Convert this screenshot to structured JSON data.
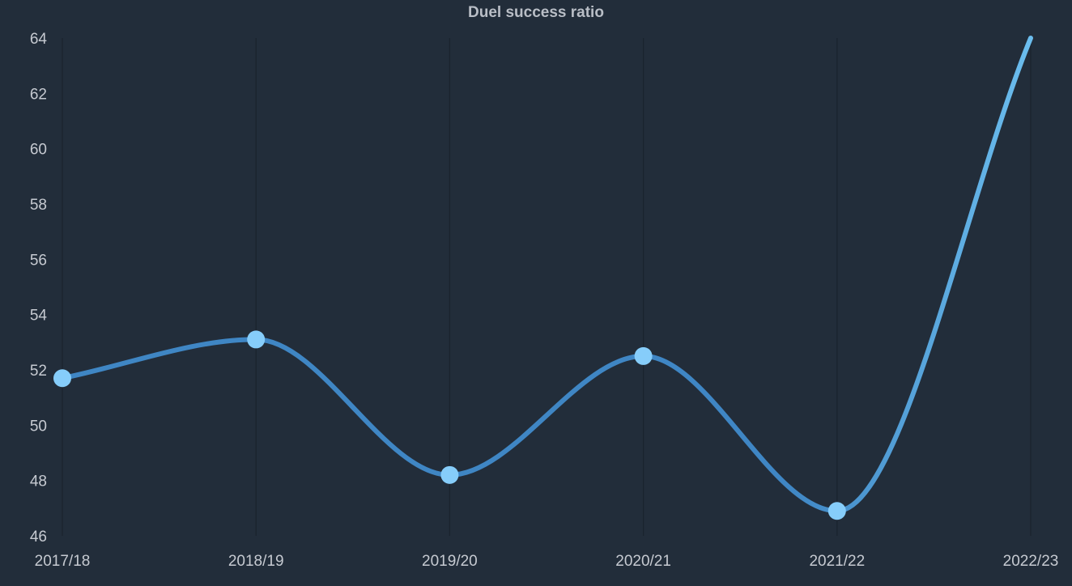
{
  "chart_data": {
    "type": "line",
    "title": "Duel success ratio",
    "xlabel": "",
    "ylabel": "",
    "categories": [
      "2017/18",
      "2018/19",
      "2019/20",
      "2020/21",
      "2021/22",
      "2022/23"
    ],
    "series": [
      {
        "values": [
          51.7,
          53.1,
          48.2,
          52.5,
          46.9,
          64.0
        ]
      }
    ],
    "ylim": [
      46,
      64
    ],
    "yticks": [
      "46",
      "48",
      "50",
      "52",
      "54",
      "56",
      "58",
      "60",
      "62",
      "64"
    ],
    "grid": "vertical",
    "legend": "none",
    "curve": "smooth",
    "colors": {
      "background": "#222d3a",
      "line": "#3f86c4",
      "line_end": "#6bbdee",
      "marker": "#86cdfa",
      "grid": "#1a232d",
      "text": "#c6cad1",
      "title": "#b9bec6"
    }
  }
}
